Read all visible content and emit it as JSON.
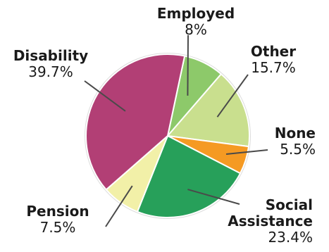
{
  "chart_data": {
    "type": "pie",
    "title": "",
    "slices": [
      {
        "label": "Employed",
        "label_lines": [
          "Employed"
        ],
        "value_text": "8%",
        "value": 8.0,
        "color": "#8dc96a"
      },
      {
        "label": "Other",
        "label_lines": [
          "Other"
        ],
        "value_text": "15.7%",
        "value": 15.7,
        "color": "#c9df8e"
      },
      {
        "label": "None",
        "label_lines": [
          "None"
        ],
        "value_text": "5.5%",
        "value": 5.5,
        "color": "#f59a23"
      },
      {
        "label": "Social Assistance",
        "label_lines": [
          "Social",
          "Assistance"
        ],
        "value_text": "23.4%",
        "value": 23.4,
        "color": "#27a05a"
      },
      {
        "label": "Pension",
        "label_lines": [
          "Pension"
        ],
        "value_text": "7.5%",
        "value": 7.5,
        "color": "#f2f0a8"
      },
      {
        "label": "Disability",
        "label_lines": [
          "Disability"
        ],
        "value_text": "39.7%",
        "value": 39.7,
        "color": "#b23f75"
      }
    ],
    "legend": "none"
  }
}
